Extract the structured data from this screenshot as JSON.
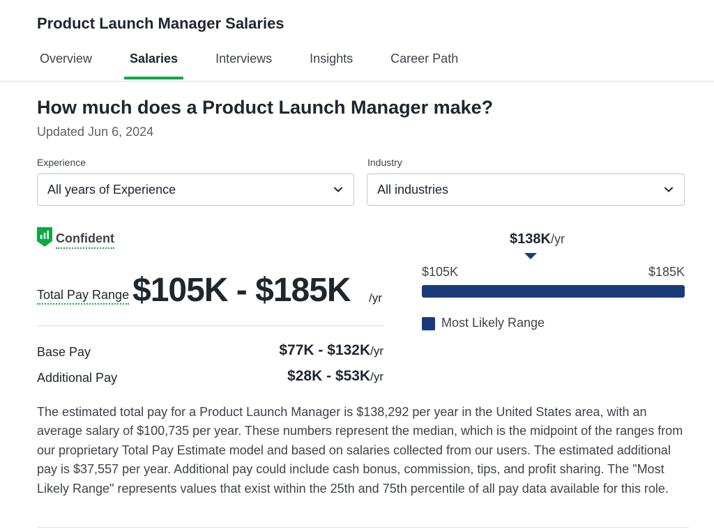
{
  "header": {
    "title": "Product Launch Manager Salaries",
    "tabs": [
      {
        "label": "Overview",
        "active": false
      },
      {
        "label": "Salaries",
        "active": true
      },
      {
        "label": "Interviews",
        "active": false
      },
      {
        "label": "Insights",
        "active": false
      },
      {
        "label": "Career Path",
        "active": false
      }
    ]
  },
  "main": {
    "heading": "How much does a Product Launch Manager make?",
    "updated": "Updated Jun 6, 2024",
    "filters": {
      "experience": {
        "label": "Experience",
        "value": "All years of Experience"
      },
      "industry": {
        "label": "Industry",
        "value": "All industries"
      }
    },
    "confidence": {
      "label": "Confident",
      "icon": "bar-chart-shield-icon"
    },
    "total_pay": {
      "label": "Total Pay Range",
      "value": "$105K - $185K",
      "unit": "/yr"
    },
    "base_pay": {
      "label": "Base Pay",
      "value": "$77K - $132K",
      "unit": "/yr"
    },
    "additional_pay": {
      "label": "Additional Pay",
      "value": "$28K - $53K",
      "unit": "/yr"
    },
    "range_chart": {
      "median": "$138K",
      "median_unit": "/yr",
      "min": "$105K",
      "max": "$185K",
      "median_value": 138,
      "min_value": 105,
      "max_value": 185,
      "legend": "Most Likely Range",
      "color": "#1a3b7a"
    },
    "description": "The estimated total pay for a Product Launch Manager is $138,292 per year in the United States area, with an average salary of $100,735 per year. These numbers represent the median, which is the midpoint of the ranges from our proprietary Total Pay Estimate model and based on salaries collected from our users. The estimated additional pay is $37,557 per year. Additional pay could include cash bonus, commission, tips, and profit sharing. The \"Most Likely Range\" represents values that exist within the 25th and 75th percentile of all pay data available for this role."
  },
  "colors": {
    "accent": "#0caa41",
    "bar": "#1a3b7a",
    "text": "#20262e"
  }
}
